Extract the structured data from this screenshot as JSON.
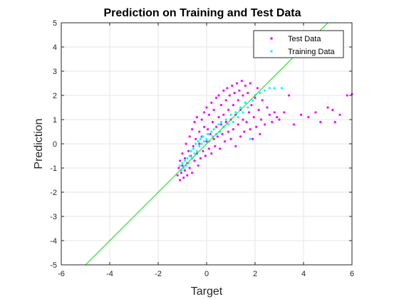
{
  "chart_data": {
    "type": "scatter",
    "title": "Prediction on Training and Test Data",
    "xlabel": "Target",
    "ylabel": "Prediction",
    "xlim": [
      -6,
      6
    ],
    "ylim": [
      -5,
      5
    ],
    "xticks": [
      -6,
      -4,
      -2,
      0,
      2,
      4,
      6
    ],
    "yticks": [
      -5,
      -4,
      -3,
      -2,
      -1,
      0,
      1,
      2,
      3,
      4,
      5
    ],
    "grid": true,
    "legend_position": "top-right",
    "reference_line": {
      "slope": 1,
      "intercept": 0,
      "color": "#00e600"
    },
    "series": [
      {
        "name": "Test Data",
        "color": "#ff00ff",
        "points": [
          [
            -1.2,
            -1.3
          ],
          [
            -1.15,
            -1.0
          ],
          [
            -1.1,
            -1.5
          ],
          [
            -1.1,
            -0.7
          ],
          [
            -1.05,
            -1.2
          ],
          [
            -1.0,
            -0.4
          ],
          [
            -1.0,
            -0.9
          ],
          [
            -0.95,
            -1.4
          ],
          [
            -0.9,
            -0.6
          ],
          [
            -0.9,
            -1.1
          ],
          [
            -0.85,
            0.0
          ],
          [
            -0.8,
            -0.8
          ],
          [
            -0.8,
            -1.3
          ],
          [
            -0.75,
            -0.3
          ],
          [
            -0.7,
            0.3
          ],
          [
            -0.7,
            -1.0
          ],
          [
            -0.65,
            -0.5
          ],
          [
            -0.6,
            0.6
          ],
          [
            -0.6,
            -1.2
          ],
          [
            -0.55,
            -0.1
          ],
          [
            -0.5,
            0.9
          ],
          [
            -0.5,
            -0.7
          ],
          [
            -0.45,
            0.2
          ],
          [
            -0.4,
            -0.4
          ],
          [
            -0.4,
            1.1
          ],
          [
            -0.35,
            -0.9
          ],
          [
            -0.3,
            0.5
          ],
          [
            -0.3,
            0.0
          ],
          [
            -0.25,
            -0.6
          ],
          [
            -0.2,
            1.0
          ],
          [
            -0.2,
            0.3
          ],
          [
            -0.15,
            -0.3
          ],
          [
            -0.1,
            0.7
          ],
          [
            -0.1,
            1.3
          ],
          [
            -0.05,
            -0.5
          ],
          [
            0.0,
            0.1
          ],
          [
            0.0,
            1.5
          ],
          [
            0.05,
            0.6
          ],
          [
            0.1,
            -0.2
          ],
          [
            0.1,
            1.2
          ],
          [
            0.15,
            0.4
          ],
          [
            0.2,
            1.7
          ],
          [
            0.2,
            -0.4
          ],
          [
            0.25,
            0.9
          ],
          [
            0.3,
            0.2
          ],
          [
            0.3,
            1.4
          ],
          [
            0.35,
            -0.1
          ],
          [
            0.4,
            1.9
          ],
          [
            0.4,
            0.7
          ],
          [
            0.45,
            0.3
          ],
          [
            0.5,
            1.1
          ],
          [
            0.5,
            2.0
          ],
          [
            0.55,
            -0.2
          ],
          [
            0.6,
            0.8
          ],
          [
            0.6,
            1.6
          ],
          [
            0.65,
            0.4
          ],
          [
            0.7,
            2.2
          ],
          [
            0.7,
            1.2
          ],
          [
            0.75,
            0.1
          ],
          [
            0.8,
            1.8
          ],
          [
            0.8,
            0.9
          ],
          [
            0.85,
            2.3
          ],
          [
            0.9,
            0.5
          ],
          [
            0.9,
            1.4
          ],
          [
            0.95,
            2.0
          ],
          [
            1.0,
            0.2
          ],
          [
            1.0,
            1.0
          ],
          [
            1.05,
            2.4
          ],
          [
            1.1,
            1.6
          ],
          [
            1.1,
            0.6
          ],
          [
            1.15,
            2.1
          ],
          [
            1.2,
            1.2
          ],
          [
            1.2,
            -0.1
          ],
          [
            1.25,
            2.5
          ],
          [
            1.3,
            0.8
          ],
          [
            1.3,
            1.8
          ],
          [
            1.35,
            2.2
          ],
          [
            1.4,
            0.3
          ],
          [
            1.4,
            1.4
          ],
          [
            1.45,
            2.6
          ],
          [
            1.5,
            1.0
          ],
          [
            1.5,
            2.0
          ],
          [
            1.55,
            0.5
          ],
          [
            1.6,
            1.7
          ],
          [
            1.6,
            2.4
          ],
          [
            1.65,
            0.9
          ],
          [
            1.7,
            2.1
          ],
          [
            1.75,
            1.3
          ],
          [
            1.8,
            0.6
          ],
          [
            1.8,
            2.5
          ],
          [
            1.85,
            1.6
          ],
          [
            1.9,
            0.2
          ],
          [
            1.95,
            1.1
          ],
          [
            2.0,
            1.9
          ],
          [
            2.05,
            0.7
          ],
          [
            2.1,
            2.3
          ],
          [
            2.15,
            1.4
          ],
          [
            2.2,
            0.4
          ],
          [
            2.25,
            1.0
          ],
          [
            2.3,
            1.8
          ],
          [
            2.4,
            0.8
          ],
          [
            2.5,
            1.5
          ],
          [
            2.6,
            1.2
          ],
          [
            2.7,
            0.9
          ],
          [
            2.8,
            1.3
          ],
          [
            2.9,
            1.1
          ],
          [
            3.0,
            1.0
          ],
          [
            3.2,
            1.3
          ],
          [
            3.4,
            2.0
          ],
          [
            3.6,
            0.8
          ],
          [
            3.9,
            1.2
          ],
          [
            4.2,
            1.1
          ],
          [
            4.5,
            1.3
          ],
          [
            4.7,
            0.9
          ],
          [
            5.0,
            1.5
          ],
          [
            5.2,
            1.4
          ],
          [
            5.3,
            0.9
          ],
          [
            5.5,
            1.2
          ],
          [
            5.8,
            2.0
          ],
          [
            6.0,
            2.05
          ]
        ]
      },
      {
        "name": "Training Data",
        "color": "#00ffff",
        "points": [
          [
            -1.1,
            -0.9
          ],
          [
            -1.05,
            -1.1
          ],
          [
            -1.0,
            -0.8
          ],
          [
            -0.95,
            -1.0
          ],
          [
            -0.9,
            -0.7
          ],
          [
            -0.85,
            -0.9
          ],
          [
            -0.8,
            -0.6
          ],
          [
            -0.75,
            -0.8
          ],
          [
            -0.7,
            -0.5
          ],
          [
            -0.65,
            -0.3
          ],
          [
            -0.6,
            -0.6
          ],
          [
            -0.55,
            -0.2
          ],
          [
            -0.5,
            -0.4
          ],
          [
            -0.45,
            0.0
          ],
          [
            -0.4,
            -0.3
          ],
          [
            -0.35,
            0.1
          ],
          [
            -0.3,
            -0.1
          ],
          [
            -0.25,
            0.2
          ],
          [
            -0.2,
            0.0
          ],
          [
            -0.15,
            0.3
          ],
          [
            -0.1,
            0.1
          ],
          [
            0.0,
            0.2
          ],
          [
            0.05,
            0.4
          ],
          [
            0.1,
            0.1
          ],
          [
            0.2,
            0.5
          ],
          [
            0.25,
            0.3
          ],
          [
            0.3,
            0.6
          ],
          [
            0.4,
            0.4
          ],
          [
            0.5,
            0.8
          ],
          [
            0.55,
            0.5
          ],
          [
            0.6,
            0.9
          ],
          [
            0.7,
            0.7
          ],
          [
            0.8,
            1.0
          ],
          [
            0.9,
            0.8
          ],
          [
            1.0,
            1.2
          ],
          [
            1.1,
            0.9
          ],
          [
            1.2,
            1.3
          ],
          [
            1.3,
            1.1
          ],
          [
            1.4,
            1.5
          ],
          [
            1.5,
            1.3
          ],
          [
            1.6,
            1.7
          ],
          [
            1.7,
            1.5
          ],
          [
            1.8,
            0.2
          ],
          [
            1.9,
            1.8
          ],
          [
            2.0,
            2.0
          ],
          [
            2.2,
            2.1
          ],
          [
            2.4,
            2.2
          ],
          [
            2.6,
            2.3
          ],
          [
            2.8,
            2.3
          ],
          [
            3.1,
            2.3
          ]
        ]
      }
    ]
  }
}
